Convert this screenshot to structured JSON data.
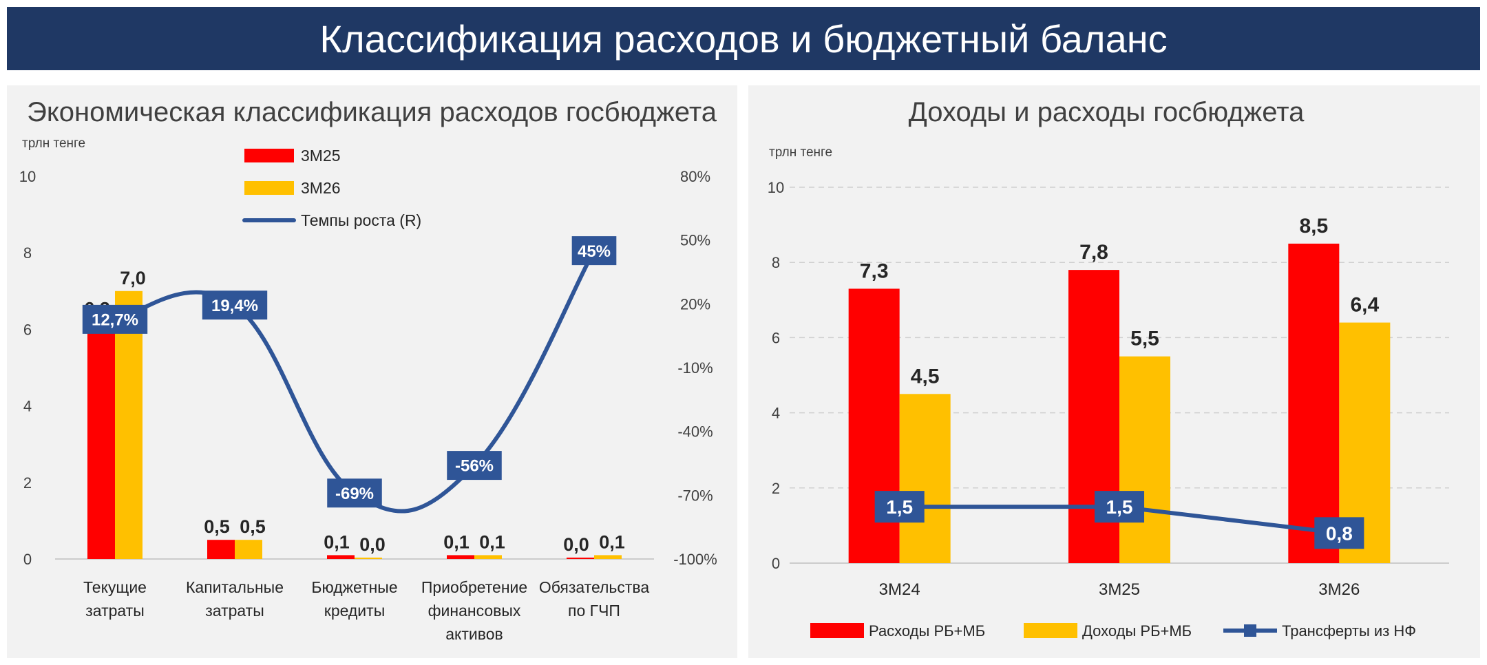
{
  "header": {
    "title": "Классификация расходов и бюджетный баланс"
  },
  "colors": {
    "banner": "#1f3864",
    "red": "#ff0000",
    "yellow": "#ffc000",
    "line": "#2f5597",
    "label_box": "#2f5597"
  },
  "chart_data": [
    {
      "type": "bar",
      "title": "Экономическая классификация расходов госбюджета",
      "ylabel": "трлн тенге",
      "ylim": [
        0,
        10
      ],
      "yticks": [
        "0",
        "2",
        "4",
        "6",
        "8",
        "10"
      ],
      "y2lim": [
        -100,
        80
      ],
      "y2ticks": [
        "-100%",
        "-70%",
        "-40%",
        "-10%",
        "20%",
        "50%",
        "80%"
      ],
      "categories": [
        [
          "Текущие",
          "затраты"
        ],
        [
          "Капитальные",
          "затраты"
        ],
        [
          "Бюджетные",
          "кредиты"
        ],
        [
          "Приобретение",
          "финансовых",
          "активов"
        ],
        [
          "Обязательства",
          "по ГЧП"
        ]
      ],
      "series": [
        {
          "name": "3М25",
          "values": [
            6.2,
            0.5,
            0.1,
            0.1,
            0.0
          ],
          "labels": [
            "6,2",
            "0,5",
            "0,1",
            "0,1",
            "0,0"
          ]
        },
        {
          "name": "3М26",
          "values": [
            7.0,
            0.5,
            0.0,
            0.1,
            0.1
          ],
          "labels": [
            "7,0",
            "0,5",
            "0,0",
            "0,1",
            "0,1"
          ]
        }
      ],
      "line_series": {
        "name": "Темпы роста (R)",
        "values": [
          12.7,
          19.4,
          -69,
          -56,
          45
        ],
        "labels": [
          "12,7%",
          "19,4%",
          "-69%",
          "-56%",
          "45%"
        ]
      },
      "legend_position": "top"
    },
    {
      "type": "bar",
      "title": "Доходы и расходы госбюджета",
      "ylabel": "трлн тенге",
      "ylim": [
        0,
        10
      ],
      "yticks": [
        "0",
        "2",
        "4",
        "6",
        "8",
        "10"
      ],
      "grid": true,
      "categories": [
        "3М24",
        "3М25",
        "3М26"
      ],
      "series": [
        {
          "name": "Расходы РБ+МБ",
          "values": [
            7.3,
            7.8,
            8.5
          ],
          "labels": [
            "7,3",
            "7,8",
            "8,5"
          ]
        },
        {
          "name": "Доходы РБ+МБ",
          "values": [
            4.5,
            5.5,
            6.4
          ],
          "labels": [
            "4,5",
            "5,5",
            "6,4"
          ]
        }
      ],
      "line_series": {
        "name": "Трансферты из НФ",
        "values": [
          1.5,
          1.5,
          0.8
        ],
        "labels": [
          "1,5",
          "1,5",
          "0,8"
        ]
      },
      "legend_position": "bottom"
    }
  ]
}
